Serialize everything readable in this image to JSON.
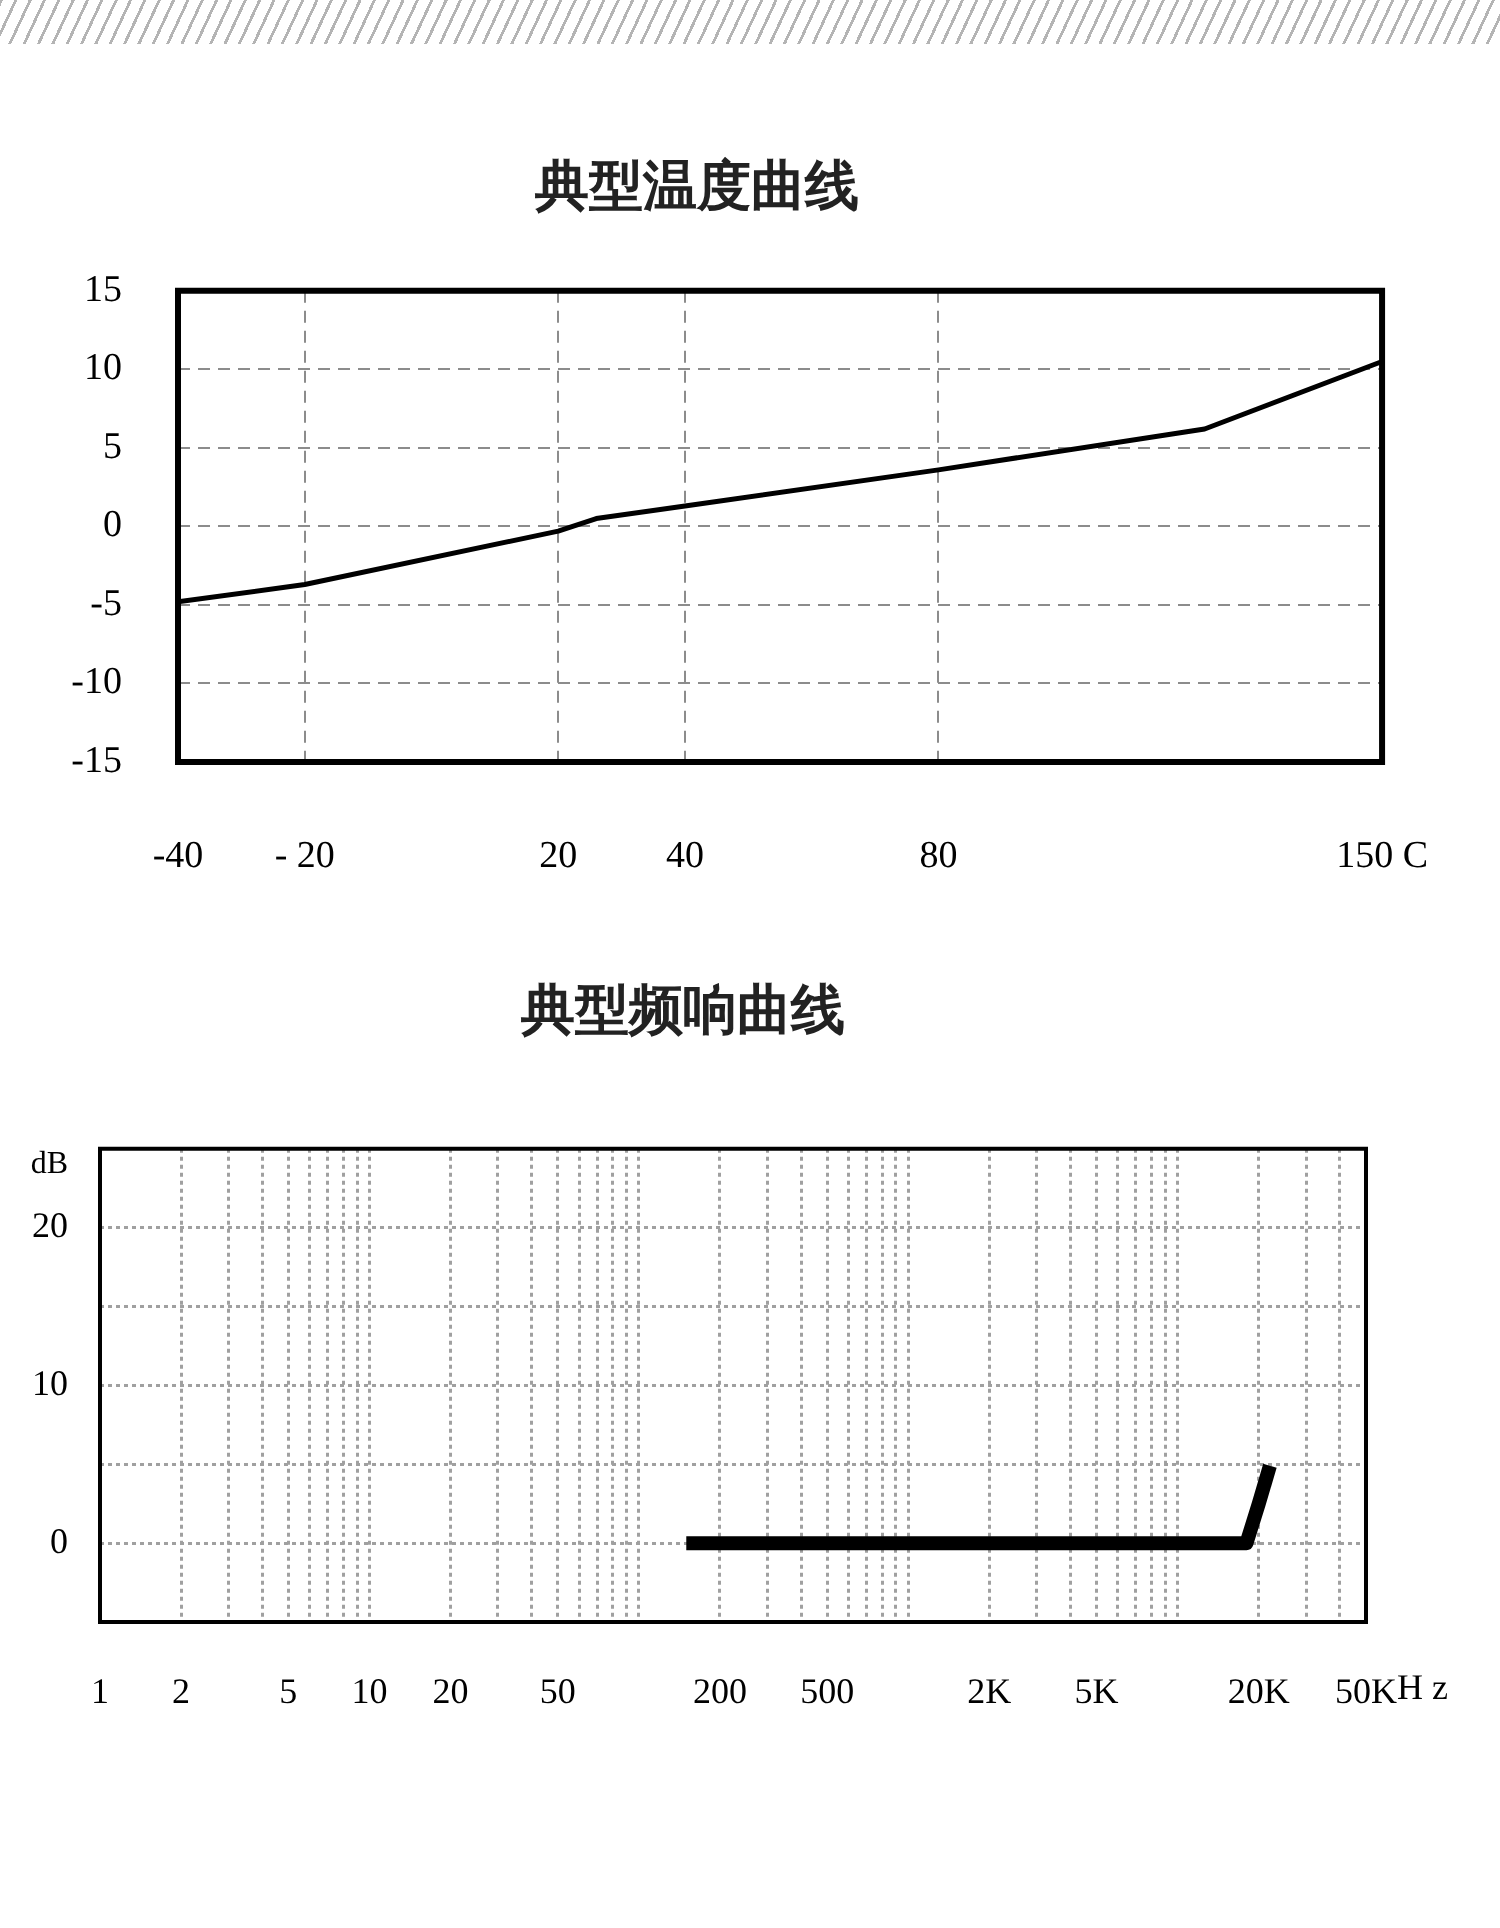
{
  "chart_data": [
    {
      "type": "line",
      "title": "典型温度曲线",
      "x": [
        -40,
        -20,
        20,
        26,
        40,
        80,
        122,
        150
      ],
      "series": [
        {
          "color": "#000000",
          "values": [
            -4.8,
            -3.7,
            -0.3,
            0.5,
            1.3,
            3.6,
            6.2,
            10.5
          ]
        }
      ],
      "xlim": [
        -40,
        150
      ],
      "xticks": [
        -40,
        {
          "value": -20,
          "label": "- 20"
        },
        20,
        40,
        80,
        {
          "value": 150,
          "label": "150 C"
        }
      ],
      "ylim": [
        -15,
        15
      ],
      "yticks": [
        -15,
        -10,
        -5,
        0,
        5,
        10,
        15
      ],
      "grid": true
    },
    {
      "type": "line",
      "title": "典型频响曲线",
      "ylabel": "dB",
      "xlabel": "H z",
      "log": "x",
      "x": [
        150,
        18000,
        20000,
        22000
      ],
      "series": [
        {
          "color": "#000000",
          "values": [
            0,
            0,
            2.5,
            4.9
          ]
        }
      ],
      "xlim": [
        1,
        50000
      ],
      "xticks": [
        1,
        2,
        {
          "value": 3,
          "label": null
        },
        {
          "value": 4,
          "label": null
        },
        5,
        {
          "value": 6,
          "label": null
        },
        {
          "value": 7,
          "label": null
        },
        {
          "value": 8,
          "label": null
        },
        {
          "value": 9,
          "label": null
        },
        10,
        20,
        {
          "value": 30,
          "label": null
        },
        {
          "value": 40,
          "label": null
        },
        50,
        {
          "value": 60,
          "label": null
        },
        {
          "value": 70,
          "label": null
        },
        {
          "value": 80,
          "label": null
        },
        {
          "value": 90,
          "label": null
        },
        {
          "value": 100,
          "label": null
        },
        200,
        {
          "value": 300,
          "label": null
        },
        {
          "value": 400,
          "label": null
        },
        500,
        {
          "value": 600,
          "label": null
        },
        {
          "value": 700,
          "label": null
        },
        {
          "value": 800,
          "label": null
        },
        {
          "value": 900,
          "label": null
        },
        {
          "value": 1000,
          "label": null
        },
        {
          "value": 2000,
          "label": "2K"
        },
        {
          "value": 3000,
          "label": null
        },
        {
          "value": 4000,
          "label": null
        },
        {
          "value": 5000,
          "label": "5K"
        },
        {
          "value": 6000,
          "label": null
        },
        {
          "value": 7000,
          "label": null
        },
        {
          "value": 8000,
          "label": null
        },
        {
          "value": 9000,
          "label": null
        },
        {
          "value": 10000,
          "label": null
        },
        {
          "value": 20000,
          "label": "20K"
        },
        {
          "value": 30000,
          "label": null
        },
        {
          "value": 40000,
          "label": null
        },
        {
          "value": 50000,
          "label": "50K"
        }
      ],
      "ylim": [
        -5,
        25
      ],
      "yticks": [
        0,
        {
          "value": 5,
          "label": null
        },
        10,
        {
          "value": 15,
          "label": null
        },
        20
      ],
      "grid": true
    }
  ]
}
